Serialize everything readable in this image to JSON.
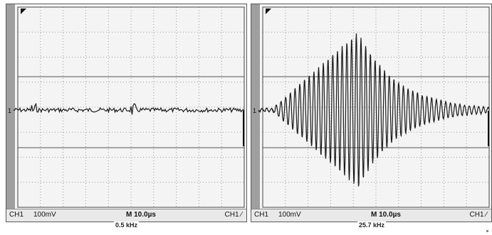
{
  "panels": [
    {
      "id": "left",
      "status": {
        "channel": "CH1",
        "volts_div": "100mV",
        "time_div": "M 10.0µs",
        "trigger": "CH1 ∕"
      },
      "frequency": "0.5 kHz",
      "ground_marker": "1",
      "signal": "noise"
    },
    {
      "id": "right",
      "status": {
        "channel": "CH1",
        "volts_div": "100mV",
        "time_div": "M 10.0µs",
        "trigger": "CH1 ∕"
      },
      "frequency": "25.7 kHz",
      "ground_marker": "1",
      "signal": "burst"
    }
  ],
  "colors": {
    "trace": "#1a1a1a",
    "grid": "#9a9a9a",
    "screen": "#f4f4f4",
    "side_bar": "#9f9f9f"
  }
}
